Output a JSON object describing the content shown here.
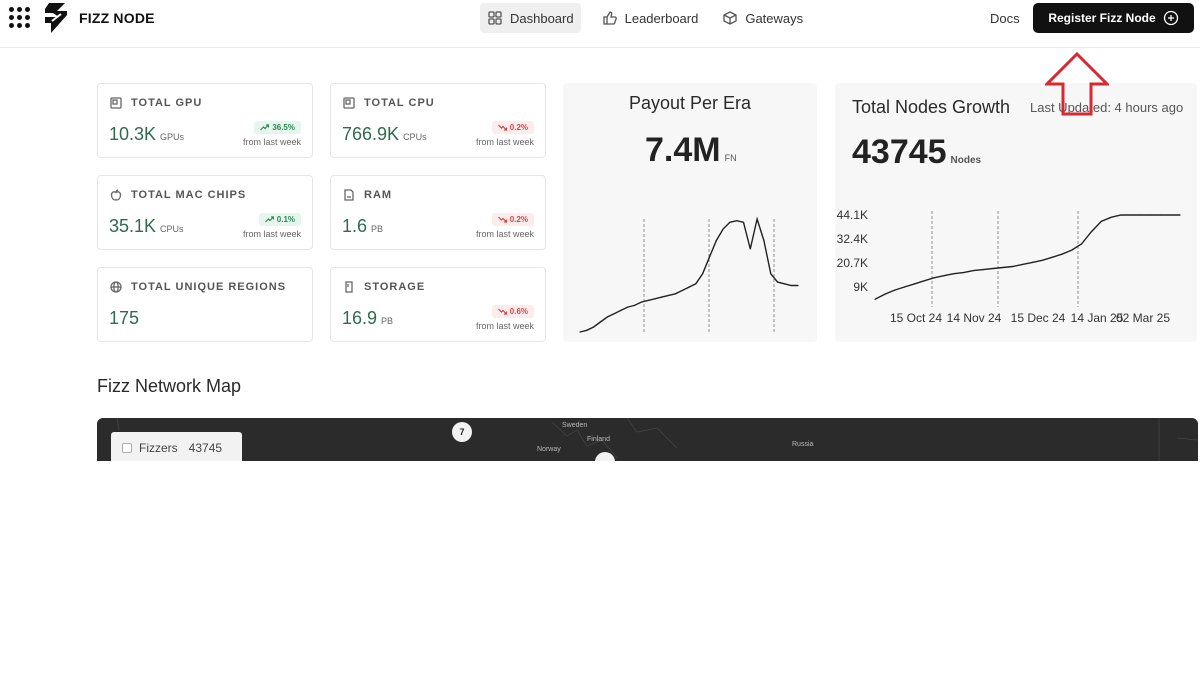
{
  "brand": {
    "name": "FIZZ NODE"
  },
  "nav": {
    "tabs": [
      {
        "label": "Dashboard",
        "icon": "dashboard-grid-icon",
        "active": true
      },
      {
        "label": "Leaderboard",
        "icon": "thumbs-up-icon",
        "active": false
      },
      {
        "label": "Gateways",
        "icon": "cube-icon",
        "active": false
      }
    ],
    "docs_label": "Docs",
    "register_label": "Register Fizz Node"
  },
  "stats": {
    "total_gpu": {
      "title": "TOTAL GPU",
      "value": "10.3K",
      "unit": "GPUs",
      "delta": "36.5%",
      "trend": "up",
      "since": "from last week",
      "icon": "gpu-icon"
    },
    "total_cpu": {
      "title": "TOTAL CPU",
      "value": "766.9K",
      "unit": "CPUs",
      "delta": "0.2%",
      "trend": "down",
      "since": "from last week",
      "icon": "cpu-icon"
    },
    "total_mac_chips": {
      "title": "TOTAL MAC CHIPS",
      "value": "35.1K",
      "unit": "CPUs",
      "delta": "0.1%",
      "trend": "up",
      "since": "from last week",
      "icon": "apple-icon"
    },
    "ram": {
      "title": "RAM",
      "value": "1.6",
      "unit": "PB",
      "delta": "0.2%",
      "trend": "down",
      "since": "from last week",
      "icon": "ram-icon"
    },
    "total_unique_regions": {
      "title": "TOTAL UNIQUE REGIONS",
      "value": "175",
      "icon": "globe-icon"
    },
    "storage": {
      "title": "STORAGE",
      "value": "16.9",
      "unit": "PB",
      "delta": "0.6%",
      "trend": "down",
      "since": "from last week",
      "icon": "storage-icon"
    }
  },
  "payout": {
    "title": "Payout Per Era",
    "value": "7.4M",
    "unit": "FN"
  },
  "growth": {
    "title": "Total Nodes Growth",
    "updated": "Last Updated: 4 hours ago",
    "value": "43745",
    "unit": "Nodes"
  },
  "chart_data": [
    {
      "type": "line",
      "title": "Payout Per Era",
      "y_axis_visible": false,
      "x_axis_visible": false,
      "grid": "vertical dashed lines",
      "series": [
        {
          "y": [
            0,
            1,
            3,
            6,
            9,
            11,
            13,
            15,
            16,
            18,
            19,
            20,
            21,
            22,
            23,
            25,
            27,
            29,
            35,
            45,
            55,
            62,
            66,
            67,
            66,
            50,
            68,
            55,
            35,
            30,
            29,
            28,
            28
          ]
        }
      ]
    },
    {
      "type": "line",
      "title": "Total Nodes Growth",
      "y_tick_labels": [
        "44.1K",
        "32.4K",
        "20.7K",
        "9K"
      ],
      "x_tick_labels": [
        "15 Oct 24",
        "14 Nov 24",
        "15 Dec 24",
        "14 Jan 25",
        "02 Mar 25"
      ],
      "grid": "vertical dashed lines",
      "series": [
        {
          "y": [
            3000,
            5500,
            7500,
            9000,
            10500,
            12000,
            13500,
            14500,
            15500,
            16000,
            17000,
            17500,
            18000,
            18500,
            19000,
            20000,
            21000,
            22000,
            23500,
            25000,
            27000,
            30000,
            36000,
            41000,
            43000,
            44100,
            44100,
            44100,
            44100,
            44100,
            44100,
            44100
          ]
        }
      ]
    }
  ],
  "map": {
    "heading": "Fizz Network Map",
    "legend_label": "Fizzers",
    "legend_count": "43745",
    "cluster_count": "7",
    "labels": [
      "Sweden",
      "Finland",
      "Norway",
      "Russia"
    ]
  },
  "colors": {
    "positive": "#2c8a55",
    "negative": "#d64545",
    "value_green": "#2f6b4f",
    "annotation_red": "#d9282f"
  }
}
